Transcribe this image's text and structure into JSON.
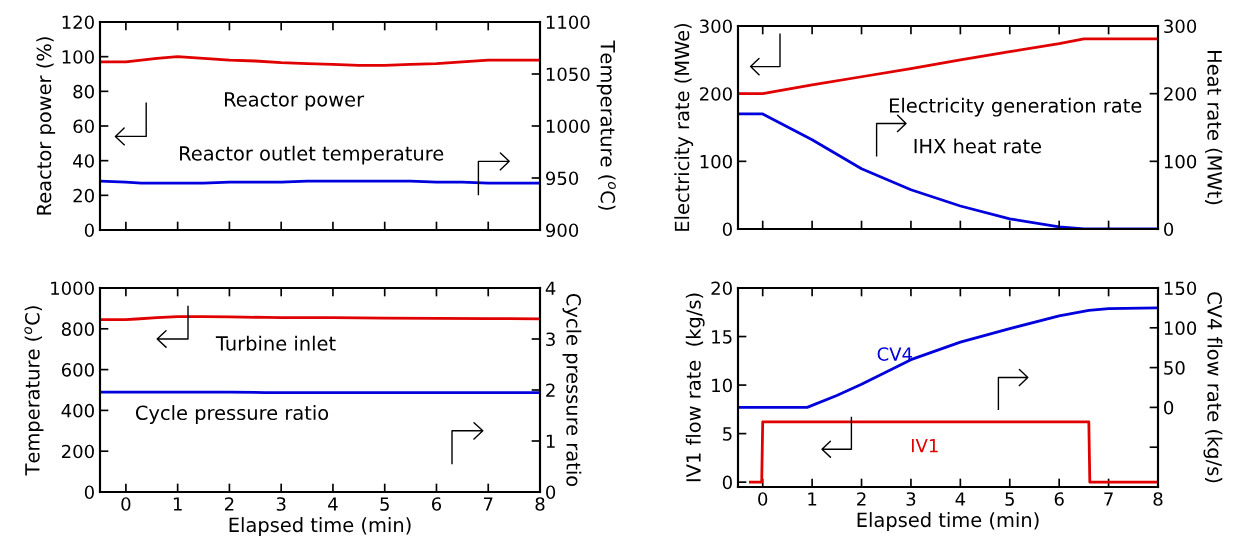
{
  "chart_data": [
    {
      "type": "line",
      "x": [
        -0.5,
        0,
        0.3,
        0.6,
        1,
        1.5,
        2,
        2.5,
        3,
        3.5,
        4,
        4.5,
        5,
        5.5,
        6,
        6.5,
        7,
        7.5,
        8
      ],
      "xlim": [
        -0.5,
        8
      ],
      "xticks": [
        {
          "value": 0,
          "label": null
        },
        {
          "value": 1,
          "label": null
        },
        {
          "value": 2,
          "label": null
        },
        {
          "value": 3,
          "label": null
        },
        {
          "value": 4,
          "label": null
        },
        {
          "value": 5,
          "label": null
        },
        {
          "value": 6,
          "label": null
        },
        {
          "value": 7,
          "label": null
        }
      ],
      "tick_labels": "y",
      "ylabel": "Reactor power (%)",
      "y2label": "Temperature ($^{o}$C)",
      "ylim": [
        0,
        120
      ],
      "yticks": [
        0,
        20,
        40,
        60,
        80,
        100,
        120
      ],
      "y2lim": [
        900,
        1100
      ],
      "y2ticks": [
        900,
        950,
        1000,
        1050,
        1100
      ],
      "grid": false,
      "legend": false,
      "series": [
        {
          "color": "#e00000",
          "values": [
            97,
            97,
            98,
            99,
            100,
            99,
            98,
            97.5,
            96.5,
            96,
            95.5,
            95,
            95,
            95.5,
            96,
            97,
            98,
            98,
            98
          ]
        },
        {
          "color": "#0000dd",
          "axis": "y2",
          "values": [
            947,
            946,
            945,
            945,
            945,
            945,
            946,
            946,
            946,
            947,
            947,
            947,
            947,
            947,
            946,
            946,
            945,
            945,
            945
          ]
        }
      ],
      "annotations": [
        "Reactor power",
        "Reactor outlet temperature"
      ]
    },
    {
      "type": "line",
      "x": [
        -0.5,
        0,
        1,
        2,
        3,
        4,
        5,
        6,
        6.5,
        7,
        8
      ],
      "xlim": [
        -0.5,
        8
      ],
      "xticks": [
        {
          "value": 0,
          "label": null
        },
        {
          "value": 1,
          "label": null
        },
        {
          "value": 2,
          "label": null
        },
        {
          "value": 3,
          "label": null
        },
        {
          "value": 4,
          "label": null
        },
        {
          "value": 5,
          "label": null
        },
        {
          "value": 6,
          "label": null
        },
        {
          "value": 7,
          "label": null
        }
      ],
      "tick_labels": "y",
      "ylabel": "Electricity rate (MWe)",
      "y2label": "Heat rate (MWt)",
      "ylim": [
        0,
        300
      ],
      "yticks": [
        0,
        100,
        200,
        300
      ],
      "y2lim": [
        0,
        300
      ],
      "y2ticks": [
        0,
        100,
        200,
        300
      ],
      "grid": false,
      "legend": false,
      "series": [
        {
          "color": "#e00000",
          "values": [
            200,
            200,
            213,
            225,
            237,
            250,
            262,
            274,
            281,
            281,
            281
          ]
        },
        {
          "color": "#0000dd",
          "axis": "y2",
          "values": [
            170,
            170,
            132,
            89,
            58,
            34,
            15,
            3,
            0,
            0,
            0
          ]
        }
      ],
      "annotations": [
        "Electricity generation rate",
        "IHX heat rate"
      ]
    },
    {
      "type": "line",
      "x": [
        -0.5,
        0,
        0.2,
        0.6,
        1,
        1.5,
        2,
        2.7,
        3,
        4,
        5,
        6,
        7,
        8
      ],
      "xlim": [
        -0.5,
        8
      ],
      "xticks": [
        0,
        1,
        2,
        3,
        4,
        5,
        6,
        7,
        8
      ],
      "xlabel": "Elapsed time (min)",
      "ylabel": "Temperature ($^{o}$C)",
      "y2label": "Cycle pressure ratio",
      "ylim": [
        0,
        1000
      ],
      "yticks": [
        0,
        200,
        400,
        600,
        800,
        1000
      ],
      "y2lim": [
        0,
        4
      ],
      "y2ticks": [
        0,
        1,
        2,
        3,
        4
      ],
      "grid": false,
      "legend": false,
      "series": [
        {
          "color": "#e00000",
          "values": [
            845,
            845,
            848,
            855,
            860,
            860,
            858,
            856,
            855,
            855,
            852,
            851,
            850,
            849
          ]
        },
        {
          "color": "#0000dd",
          "axis": "y2",
          "values": [
            1.96,
            1.96,
            1.96,
            1.96,
            1.96,
            1.96,
            1.96,
            1.95,
            1.95,
            1.95,
            1.95,
            1.95,
            1.95,
            1.95
          ]
        }
      ],
      "annotations": [
        "Turbine inlet",
        "Cycle pressure ratio"
      ]
    },
    {
      "type": "line",
      "xlim": [
        -0.5,
        8
      ],
      "xticks": [
        0,
        1,
        2,
        3,
        4,
        5,
        6,
        7,
        8
      ],
      "xlabel": "Elapsed time (min)",
      "ylabel": "IV1 flow rate  (kg/s)",
      "y2label": "CV4 flow rate (kg/s)",
      "ylim": [
        -0.5,
        20
      ],
      "yticks": [
        0,
        5,
        10,
        15,
        20
      ],
      "y2lim": [
        -100,
        150
      ],
      "y2ticks": [
        {
          "value": -100,
          "label": null
        },
        {
          "value": -50,
          "label": null
        },
        0,
        50,
        100,
        150
      ],
      "grid": false,
      "legend": false,
      "series": [
        {
          "name": "IV1",
          "color": "#e00000",
          "x": [
            -0.25,
            -0.02,
            0,
            6.6,
            6.62,
            8
          ],
          "values": [
            0,
            0,
            6.2,
            6.2,
            0,
            0
          ]
        },
        {
          "name": "CV4",
          "color": "#0000dd",
          "axis": "y2",
          "x": [
            -0.5,
            0.9,
            1.5,
            2,
            3,
            4,
            5,
            6,
            6.6,
            7,
            8
          ],
          "values": [
            0,
            0,
            15,
            29,
            60,
            82,
            99,
            115,
            122,
            124,
            125
          ]
        }
      ]
    }
  ]
}
